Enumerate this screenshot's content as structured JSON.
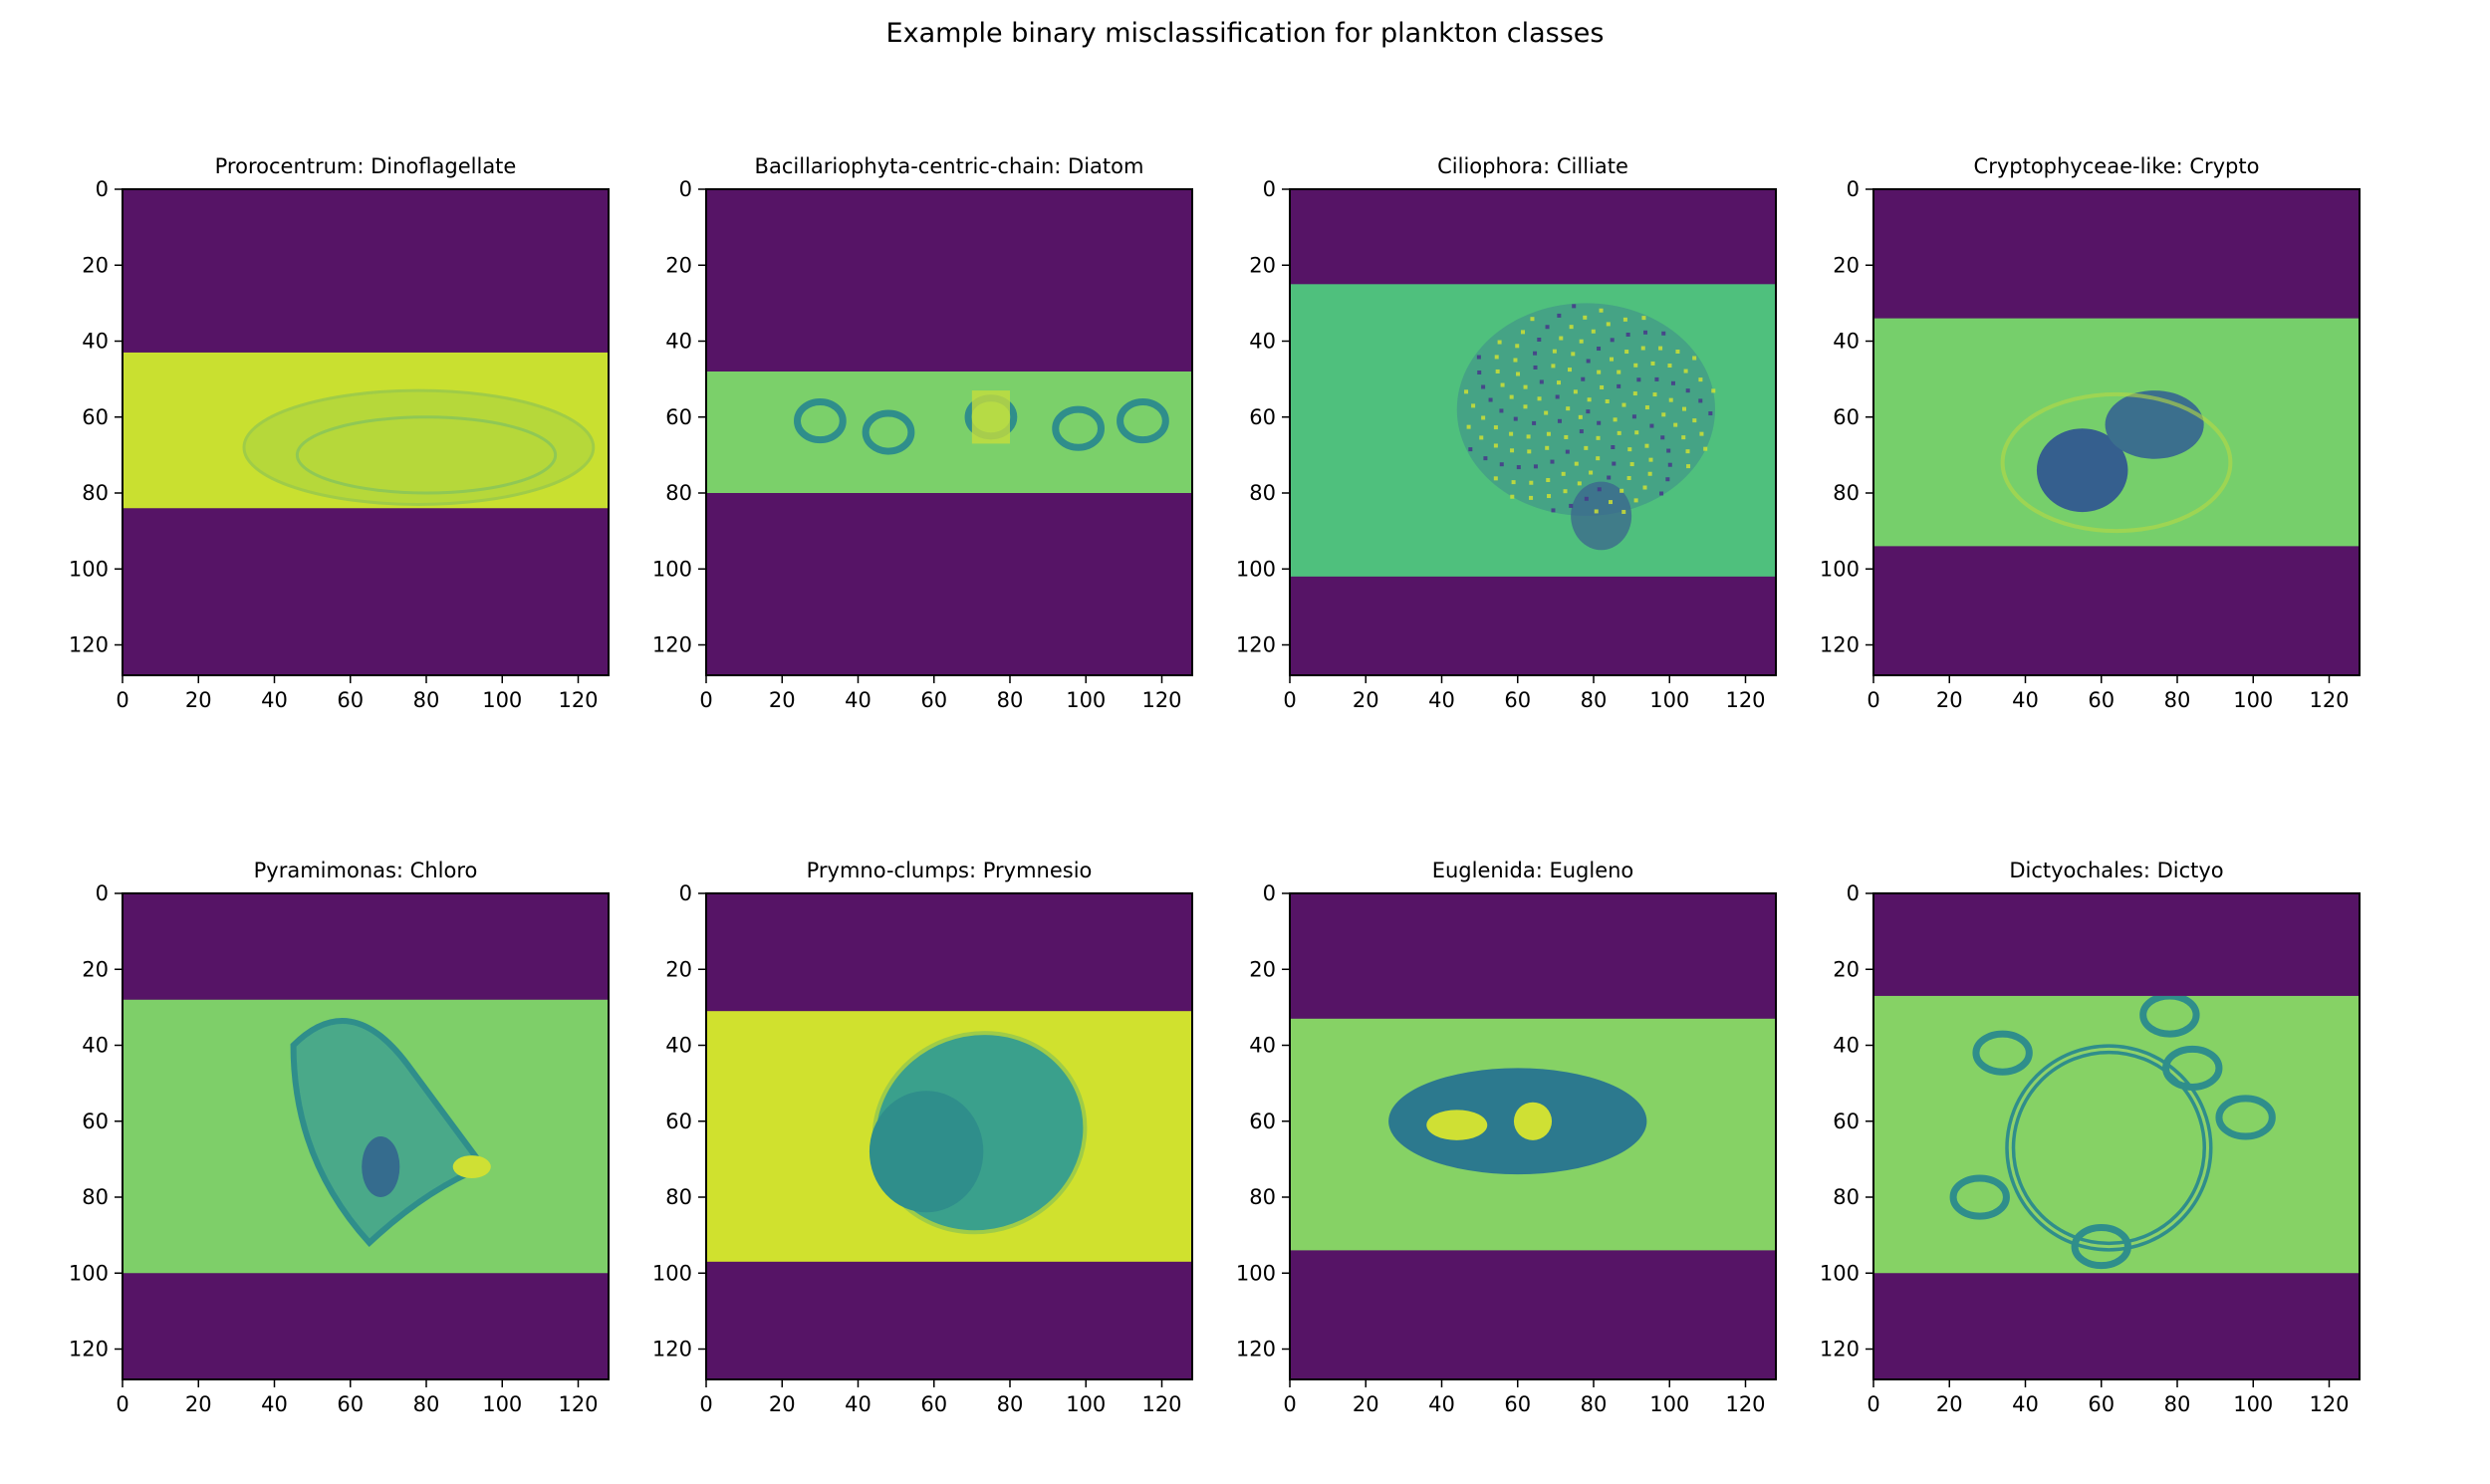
{
  "figure": {
    "suptitle": "Example binary misclassification for plankton classes"
  },
  "colors": {
    "background_band": "#561466",
    "high": "#cfe034",
    "mid": "#58c27a",
    "low": "#2a6f8e"
  },
  "chart_data": [
    {
      "type": "image",
      "title": "Prorocentrum: Dinoflagellate",
      "xlim": [
        0,
        128
      ],
      "ylim": [
        128,
        0
      ],
      "xticks": [
        0,
        20,
        40,
        60,
        80,
        100,
        120
      ],
      "yticks": [
        0,
        20,
        40,
        60,
        80,
        100,
        120
      ],
      "image_band_rows": [
        43,
        84
      ],
      "band_fill": "#c9e030",
      "subject": "pale oval blob centered near x=80, y=64"
    },
    {
      "type": "image",
      "title": "Bacillariophyta-centric-chain: Diatom",
      "xlim": [
        0,
        128
      ],
      "ylim": [
        128,
        0
      ],
      "xticks": [
        0,
        20,
        40,
        60,
        80,
        100,
        120
      ],
      "yticks": [
        0,
        20,
        40,
        60,
        80,
        100,
        120
      ],
      "image_band_rows": [
        48,
        80
      ],
      "band_fill": "#7bd06a",
      "subject": "chain of ring-shaped cells along y=62"
    },
    {
      "type": "image",
      "title": "Ciliophora: Cilliate",
      "xlim": [
        0,
        128
      ],
      "ylim": [
        128,
        0
      ],
      "xticks": [
        0,
        20,
        40,
        60,
        80,
        100,
        120
      ],
      "yticks": [
        0,
        20,
        40,
        60,
        80,
        100,
        120
      ],
      "image_band_rows": [
        25,
        102
      ],
      "band_fill": "#4fc07d",
      "subject": "irregular speckled cell mass centered near x=75, y=60"
    },
    {
      "type": "image",
      "title": "Cryptophyceae-like: Crypto",
      "xlim": [
        0,
        128
      ],
      "ylim": [
        128,
        0
      ],
      "xticks": [
        0,
        20,
        40,
        60,
        80,
        100,
        120
      ],
      "yticks": [
        0,
        20,
        40,
        60,
        80,
        100,
        120
      ],
      "image_band_rows": [
        34,
        94
      ],
      "band_fill": "#76cf6b",
      "subject": "dark peanut-shaped cell near x=62, y=68"
    },
    {
      "type": "image",
      "title": "Pyramimonas: Chloro",
      "xlim": [
        0,
        128
      ],
      "ylim": [
        128,
        0
      ],
      "xticks": [
        0,
        20,
        40,
        60,
        80,
        100,
        120
      ],
      "yticks": [
        0,
        20,
        40,
        60,
        80,
        100,
        120
      ],
      "image_band_rows": [
        28,
        100
      ],
      "band_fill": "#7ecf69",
      "subject": "irregular textured cell near x=70, y=60"
    },
    {
      "type": "image",
      "title": "Prymno-clumps: Prymnesio",
      "xlim": [
        0,
        128
      ],
      "ylim": [
        128,
        0
      ],
      "xticks": [
        0,
        20,
        40,
        60,
        80,
        100,
        120
      ],
      "yticks": [
        0,
        20,
        40,
        60,
        80,
        100,
        120
      ],
      "image_band_rows": [
        31,
        97
      ],
      "band_fill": "#d0e12e",
      "subject": "large oval textured cell near x=70, y=62"
    },
    {
      "type": "image",
      "title": "Euglenida: Eugleno",
      "xlim": [
        0,
        128
      ],
      "ylim": [
        128,
        0
      ],
      "xticks": [
        0,
        20,
        40,
        60,
        80,
        100,
        120
      ],
      "yticks": [
        0,
        20,
        40,
        60,
        80,
        100,
        120
      ],
      "image_band_rows": [
        33,
        94
      ],
      "band_fill": "#86d265",
      "subject": "elongated dark cell with bright spots near x=60, y=60"
    },
    {
      "type": "image",
      "title": "Dictyochales: Dictyo",
      "xlim": [
        0,
        128
      ],
      "ylim": [
        128,
        0
      ],
      "xticks": [
        0,
        20,
        40,
        60,
        80,
        100,
        120
      ],
      "yticks": [
        0,
        20,
        40,
        60,
        80,
        100,
        120
      ],
      "image_band_rows": [
        27,
        100
      ],
      "band_fill": "#86d265",
      "subject": "ring-shaped skeleton near x=62, y=65"
    }
  ]
}
